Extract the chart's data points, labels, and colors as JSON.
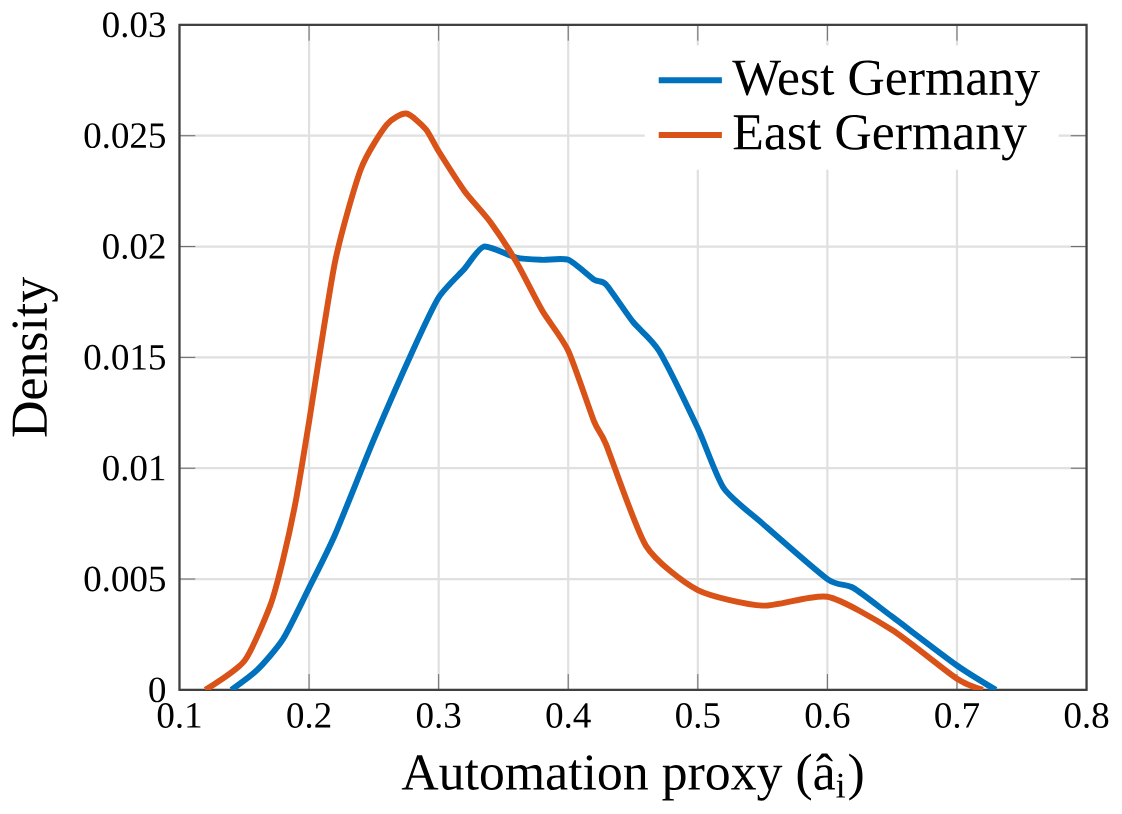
{
  "chart_data": {
    "type": "line",
    "xlabel": "Automation proxy (â$_{i}$)",
    "ylabel": "Density",
    "xlim": [
      0.1,
      0.8
    ],
    "ylim": [
      0,
      0.03
    ],
    "xticks": [
      0.1,
      0.2,
      0.3,
      0.4,
      0.5,
      0.6,
      0.7,
      0.8
    ],
    "yticks": [
      0,
      0.005,
      0.01,
      0.015,
      0.02,
      0.025,
      0.03
    ],
    "grid": true,
    "legend": "top right",
    "line_style": "solid",
    "series": [
      {
        "name": "West Germany",
        "color": "#0072bd",
        "x": [
          0.14,
          0.16,
          0.18,
          0.2,
          0.22,
          0.25,
          0.28,
          0.3,
          0.32,
          0.335,
          0.36,
          0.38,
          0.4,
          0.42,
          0.429,
          0.45,
          0.47,
          0.5,
          0.52,
          0.55,
          0.6,
          0.62,
          0.65,
          0.7,
          0.73
        ],
        "values": [
          0,
          0.0009,
          0.0023,
          0.0046,
          0.007,
          0.0113,
          0.0153,
          0.0177,
          0.019,
          0.02,
          0.0195,
          0.0194,
          0.0194,
          0.0185,
          0.0183,
          0.0166,
          0.0153,
          0.0118,
          0.0091,
          0.0075,
          0.005,
          0.0046,
          0.0033,
          0.0011,
          0
        ]
      },
      {
        "name": "East Germany",
        "color": "#d95319",
        "x": [
          0.12,
          0.15,
          0.17,
          0.18,
          0.19,
          0.2,
          0.22,
          0.24,
          0.26,
          0.275,
          0.29,
          0.3,
          0.32,
          0.34,
          0.36,
          0.38,
          0.4,
          0.42,
          0.429,
          0.46,
          0.5,
          0.55,
          0.6,
          0.65,
          0.7,
          0.72
        ],
        "values": [
          0,
          0.0013,
          0.0038,
          0.0059,
          0.0086,
          0.0121,
          0.0193,
          0.0235,
          0.0255,
          0.026,
          0.0253,
          0.0243,
          0.0225,
          0.0211,
          0.0193,
          0.0171,
          0.0153,
          0.0121,
          0.0111,
          0.0065,
          0.0045,
          0.0038,
          0.0042,
          0.0027,
          0.0005,
          0
        ]
      }
    ]
  }
}
